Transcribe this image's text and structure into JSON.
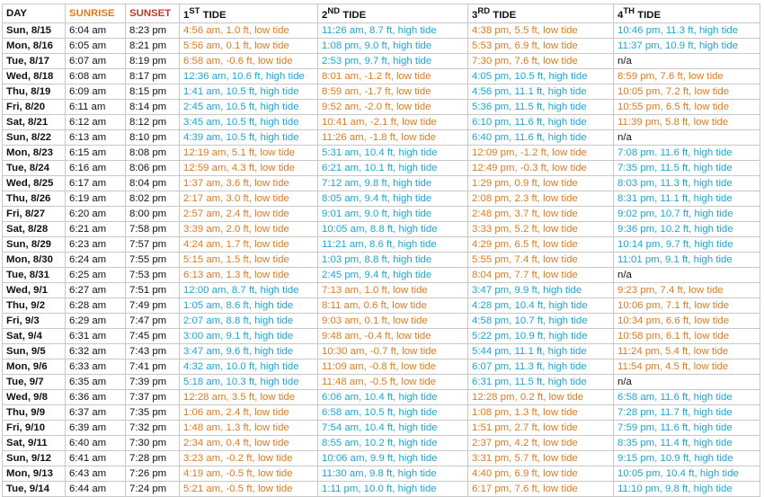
{
  "colors": {
    "low": "#e07b1f",
    "high": "#1ba7d6",
    "sunrise": "#e07b1f",
    "sunset": "#c0392b"
  },
  "headers": {
    "day": "DAY",
    "sunrise": "SUNRISE",
    "sunset": "SUNSET",
    "tide1": {
      "num": "1",
      "sup": "ST",
      "label": " TIDE"
    },
    "tide2": {
      "num": "2",
      "sup": "ND",
      "label": " TIDE"
    },
    "tide3": {
      "num": "3",
      "sup": "RD",
      "label": " TIDE"
    },
    "tide4": {
      "num": "4",
      "sup": "TH",
      "label": " TIDE"
    }
  },
  "rows": [
    {
      "day": "Sun, 8/15",
      "sunrise": "6:04 am",
      "sunset": "8:23 pm",
      "tides": [
        {
          "text": "4:56 am, 1.0 ft, low tide",
          "type": "low"
        },
        {
          "text": "11:26 am, 8.7 ft, high tide",
          "type": "high"
        },
        {
          "text": "4:38 pm, 5.5 ft, low tide",
          "type": "low"
        },
        {
          "text": "10:46 pm, 11.3 ft, high tide",
          "type": "high"
        }
      ]
    },
    {
      "day": "Mon, 8/16",
      "sunrise": "6:05 am",
      "sunset": "8:21 pm",
      "tides": [
        {
          "text": "5:56 am, 0.1 ft, low tide",
          "type": "low"
        },
        {
          "text": "1:08 pm, 9.0 ft, high tide",
          "type": "high"
        },
        {
          "text": "5:53 pm, 6.9 ft, low tide",
          "type": "low"
        },
        {
          "text": "11:37 pm, 10.9 ft, high tide",
          "type": "high"
        }
      ]
    },
    {
      "day": "Tue, 8/17",
      "sunrise": "6:07 am",
      "sunset": "8:19 pm",
      "tides": [
        {
          "text": "6:58 am, -0.6 ft, low tide",
          "type": "low"
        },
        {
          "text": "2:53 pm, 9.7 ft, high tide",
          "type": "high"
        },
        {
          "text": "7:30 pm, 7.6 ft, low tide",
          "type": "low"
        },
        {
          "text": "n/a",
          "type": "na"
        }
      ]
    },
    {
      "day": "Wed, 8/18",
      "sunrise": "6:08 am",
      "sunset": "8:17 pm",
      "tides": [
        {
          "text": "12:36 am, 10.6 ft, high tide",
          "type": "high"
        },
        {
          "text": "8:01 am, -1.2 ft, low tide",
          "type": "low"
        },
        {
          "text": "4:05 pm, 10.5 ft, high tide",
          "type": "high"
        },
        {
          "text": "8:59 pm, 7.6 ft, low tide",
          "type": "low"
        }
      ]
    },
    {
      "day": "Thu, 8/19",
      "sunrise": "6:09 am",
      "sunset": "8:15 pm",
      "tides": [
        {
          "text": "1:41 am, 10.5 ft, high tide",
          "type": "high"
        },
        {
          "text": "8:59 am, -1.7 ft, low tide",
          "type": "low"
        },
        {
          "text": "4:56 pm, 11.1 ft, high tide",
          "type": "high"
        },
        {
          "text": "10:05 pm, 7.2 ft, low tide",
          "type": "low"
        }
      ]
    },
    {
      "day": "Fri, 8/20",
      "sunrise": "6:11 am",
      "sunset": "8:14 pm",
      "tides": [
        {
          "text": "2:45 am, 10.5 ft, high tide",
          "type": "high"
        },
        {
          "text": "9:52 am, -2.0 ft, low tide",
          "type": "low"
        },
        {
          "text": "5:36 pm, 11.5 ft, high tide",
          "type": "high"
        },
        {
          "text": "10:55 pm, 6.5 ft, low tide",
          "type": "low"
        }
      ]
    },
    {
      "day": "Sat, 8/21",
      "sunrise": "6:12 am",
      "sunset": "8:12 pm",
      "tides": [
        {
          "text": "3:45 am, 10.5 ft, high tide",
          "type": "high"
        },
        {
          "text": "10:41 am, -2.1 ft, low tide",
          "type": "low"
        },
        {
          "text": "6:10 pm, 11.6 ft, high tide",
          "type": "high"
        },
        {
          "text": "11:39 pm, 5.8 ft, low tide",
          "type": "low"
        }
      ]
    },
    {
      "day": "Sun, 8/22",
      "sunrise": "6:13 am",
      "sunset": "8:10 pm",
      "tides": [
        {
          "text": "4:39 am, 10.5 ft, high tide",
          "type": "high"
        },
        {
          "text": "11:26 am, -1.8 ft, low tide",
          "type": "low"
        },
        {
          "text": "6:40 pm, 11.6 ft, high tide",
          "type": "high"
        },
        {
          "text": "n/a",
          "type": "na"
        }
      ]
    },
    {
      "day": "Mon, 8/23",
      "sunrise": "6:15 am",
      "sunset": "8:08 pm",
      "tides": [
        {
          "text": "12:19 am, 5.1 ft, low tide",
          "type": "low"
        },
        {
          "text": "5:31 am, 10.4 ft, high tide",
          "type": "high"
        },
        {
          "text": "12:09 pm, -1.2 ft, low tide",
          "type": "low"
        },
        {
          "text": "7:08 pm. 11.6 ft, high tide",
          "type": "high"
        }
      ]
    },
    {
      "day": "Tue, 8/24",
      "sunrise": "6:16 am",
      "sunset": "8:06 pm",
      "tides": [
        {
          "text": "12:59 am, 4.3 ft, low tide",
          "type": "low"
        },
        {
          "text": "6:21 am, 10.1 ft, high tide",
          "type": "high"
        },
        {
          "text": "12:49 pm, -0.3 ft, low tide",
          "type": "low"
        },
        {
          "text": "7:35 pm, 11.5 ft, high tide",
          "type": "high"
        }
      ]
    },
    {
      "day": "Wed, 8/25",
      "sunrise": "6:17 am",
      "sunset": "8:04 pm",
      "tides": [
        {
          "text": "1:37 am, 3.6 ft, low tide",
          "type": "low"
        },
        {
          "text": "7:12 am, 9.8 ft, high tide",
          "type": "high"
        },
        {
          "text": "1:29 pm, 0.9 ft, low tide",
          "type": "low"
        },
        {
          "text": "8:03 pm, 11.3 ft, high tide",
          "type": "high"
        }
      ]
    },
    {
      "day": "Thu, 8/26",
      "sunrise": "6:19 am",
      "sunset": "8:02 pm",
      "tides": [
        {
          "text": "2:17 am, 3.0 ft, low tide",
          "type": "low"
        },
        {
          "text": "8:05 am, 9.4 ft, high tide",
          "type": "high"
        },
        {
          "text": "2:08 pm, 2.3 ft, low tide",
          "type": "low"
        },
        {
          "text": "8:31 pm, 11.1 ft, high tide",
          "type": "high"
        }
      ]
    },
    {
      "day": "Fri, 8/27",
      "sunrise": "6:20 am",
      "sunset": "8:00 pm",
      "tides": [
        {
          "text": "2:57 am, 2.4 ft, low tide",
          "type": "low"
        },
        {
          "text": "9:01 am, 9.0 ft, high tide",
          "type": "high"
        },
        {
          "text": "2:48 pm, 3.7 ft, low tide",
          "type": "low"
        },
        {
          "text": "9:02 pm, 10.7 ft, high tide",
          "type": "high"
        }
      ]
    },
    {
      "day": "Sat, 8/28",
      "sunrise": "6:21 am",
      "sunset": "7:58 pm",
      "tides": [
        {
          "text": "3:39 am, 2.0 ft, low tide",
          "type": "low"
        },
        {
          "text": "10:05 am, 8.8 ft, high tide",
          "type": "high"
        },
        {
          "text": "3:33 pm, 5.2 ft, low tide",
          "type": "low"
        },
        {
          "text": "9:36 pm, 10.2 ft, high tide",
          "type": "high"
        }
      ]
    },
    {
      "day": "Sun, 8/29",
      "sunrise": "6:23 am",
      "sunset": "7:57 pm",
      "tides": [
        {
          "text": "4:24 am, 1.7 ft, low tide",
          "type": "low"
        },
        {
          "text": "11:21 am, 8.6 ft, high tide",
          "type": "high"
        },
        {
          "text": "4:29 pm, 6.5 ft, low tide",
          "type": "low"
        },
        {
          "text": "10:14 pm, 9.7 ft, high tide",
          "type": "high"
        }
      ]
    },
    {
      "day": "Mon, 8/30",
      "sunrise": "6:24 am",
      "sunset": "7:55 pm",
      "tides": [
        {
          "text": "5:15 am, 1.5 ft, low tide",
          "type": "low"
        },
        {
          "text": "1:03 pm, 8.8 ft, high tide",
          "type": "high"
        },
        {
          "text": "5:55 pm, 7.4 ft, low tide",
          "type": "low"
        },
        {
          "text": "11:01 pm, 9.1 ft, high tide",
          "type": "high"
        }
      ]
    },
    {
      "day": "Tue, 8/31",
      "sunrise": "6:25 am",
      "sunset": "7:53 pm",
      "tides": [
        {
          "text": "6:13 am, 1.3 ft, low tide",
          "type": "low"
        },
        {
          "text": "2:45 pm, 9.4 ft, high tide",
          "type": "high"
        },
        {
          "text": "8:04 pm, 7.7 ft, low tide",
          "type": "low"
        },
        {
          "text": "n/a",
          "type": "na"
        }
      ]
    },
    {
      "day": "Wed, 9/1",
      "sunrise": "6:27 am",
      "sunset": "7:51 pm",
      "tides": [
        {
          "text": "12:00 am, 8.7 ft, high tide",
          "type": "high"
        },
        {
          "text": "7:13 am, 1.0 ft, low tide",
          "type": "low"
        },
        {
          "text": "3:47 pm, 9.9 ft, high tide",
          "type": "high"
        },
        {
          "text": "9:23 pm, 7.4 ft, low tide",
          "type": "low"
        }
      ]
    },
    {
      "day": "Thu, 9/2",
      "sunrise": "6:28 am",
      "sunset": "7:49 pm",
      "tides": [
        {
          "text": "1:05 am, 8.6 ft, high tide",
          "type": "high"
        },
        {
          "text": "8:11 am, 0.6 ft, low tide",
          "type": "low"
        },
        {
          "text": "4:28 pm, 10.4 ft, high tide",
          "type": "high"
        },
        {
          "text": "10:06 pm, 7.1 ft, low tide",
          "type": "low"
        }
      ]
    },
    {
      "day": "Fri, 9/3",
      "sunrise": "6:29 am",
      "sunset": "7:47 pm",
      "tides": [
        {
          "text": "2:07 am, 8.8 ft, high tide",
          "type": "high"
        },
        {
          "text": "9:03 am, 0.1 ft, low tide",
          "type": "low"
        },
        {
          "text": "4:58 pm, 10.7 ft, high tide",
          "type": "high"
        },
        {
          "text": "10:34 pm, 6.6 ft, low tide",
          "type": "low"
        }
      ]
    },
    {
      "day": "Sat, 9/4",
      "sunrise": "6:31 am",
      "sunset": "7:45 pm",
      "tides": [
        {
          "text": "3:00 am, 9.1 ft, high tide",
          "type": "high"
        },
        {
          "text": "9:48 am, -0.4 ft, low tide",
          "type": "low"
        },
        {
          "text": "5:22 pm, 10.9 ft, high tide",
          "type": "high"
        },
        {
          "text": "10:58 pm, 6.1 ft, low tide",
          "type": "low"
        }
      ]
    },
    {
      "day": "Sun, 9/5",
      "sunrise": "6:32 am",
      "sunset": "7:43 pm",
      "tides": [
        {
          "text": "3:47 am, 9.6 ft, high tide",
          "type": "high"
        },
        {
          "text": "10:30 am, -0.7 ft, low tide",
          "type": "low"
        },
        {
          "text": "5:44 pm, 11.1 ft, high tide",
          "type": "high"
        },
        {
          "text": "11:24 pm, 5.4 ft, low tide",
          "type": "low"
        }
      ]
    },
    {
      "day": "Mon, 9/6",
      "sunrise": "6:33 am",
      "sunset": "7:41 pm",
      "tides": [
        {
          "text": "4:32 am, 10.0 ft, high tide",
          "type": "high"
        },
        {
          "text": "11:09 am, -0.8 ft, low tide",
          "type": "low"
        },
        {
          "text": "6:07 pm, 11.3 ft, high tide",
          "type": "high"
        },
        {
          "text": "11:54 pm, 4.5 ft, low tide",
          "type": "low"
        }
      ]
    },
    {
      "day": "Tue, 9/7",
      "sunrise": "6:35 am",
      "sunset": "7:39 pm",
      "tides": [
        {
          "text": "5:18 am, 10.3 ft, high tide",
          "type": "high"
        },
        {
          "text": "11:48 am, -0.5 ft, low tide",
          "type": "low"
        },
        {
          "text": "6:31 pm, 11.5 ft, high tide",
          "type": "high"
        },
        {
          "text": "n/a",
          "type": "na"
        }
      ]
    },
    {
      "day": "Wed, 9/8",
      "sunrise": "6:36 am",
      "sunset": "7:37 pm",
      "tides": [
        {
          "text": "12:28 am, 3.5 ft, low tide",
          "type": "low"
        },
        {
          "text": "6:06 am, 10.4 ft, high tide",
          "type": "high"
        },
        {
          "text": "12:28 pm, 0.2 ft, low tide",
          "type": "low"
        },
        {
          "text": "6:58 am, 11.6 ft, high tide",
          "type": "high"
        }
      ]
    },
    {
      "day": "Thu, 9/9",
      "sunrise": "6:37 am",
      "sunset": "7:35 pm",
      "tides": [
        {
          "text": "1:06 am, 2.4 ft, low tide",
          "type": "low"
        },
        {
          "text": "6:58 am, 10.5 ft, high tide",
          "type": "high"
        },
        {
          "text": "1:08 pm, 1.3 ft, low tide",
          "type": "low"
        },
        {
          "text": "7:28 pm, 11.7 ft, high tide",
          "type": "high"
        }
      ]
    },
    {
      "day": "Fri, 9/10",
      "sunrise": "6:39 am",
      "sunset": "7:32 pm",
      "tides": [
        {
          "text": "1:48 am, 1.3 ft, low tide",
          "type": "low"
        },
        {
          "text": "7:54 am, 10.4 ft, high tide",
          "type": "high"
        },
        {
          "text": "1:51 pm, 2.7 ft, low tide",
          "type": "low"
        },
        {
          "text": "7:59 pm, 11.6 ft, high tide",
          "type": "high"
        }
      ]
    },
    {
      "day": "Sat, 9/11",
      "sunrise": "6:40 am",
      "sunset": "7:30 pm",
      "tides": [
        {
          "text": "2:34 am, 0.4 ft, low tide",
          "type": "low"
        },
        {
          "text": "8:55 am, 10.2 ft, high tide",
          "type": "high"
        },
        {
          "text": "2:37 pm, 4.2 ft, low tide",
          "type": "low"
        },
        {
          "text": "8:35 pm, 11.4 ft, high tide",
          "type": "high"
        }
      ]
    },
    {
      "day": "Sun, 9/12",
      "sunrise": "6:41 am",
      "sunset": "7:28 pm",
      "tides": [
        {
          "text": "3:23 am, -0.2 ft, low tide",
          "type": "low"
        },
        {
          "text": "10:06 am, 9.9 ft, high tide",
          "type": "high"
        },
        {
          "text": "3:31 pm, 5.7 ft, low tide",
          "type": "low"
        },
        {
          "text": "9:15 pm, 10.9 ft, high tide",
          "type": "high"
        }
      ]
    },
    {
      "day": "Mon, 9/13",
      "sunrise": "6:43 am",
      "sunset": "7:26 pm",
      "tides": [
        {
          "text": "4:19 am, -0.5 ft, low tide",
          "type": "low"
        },
        {
          "text": "11:30 am, 9.8 ft, high tide",
          "type": "high"
        },
        {
          "text": "4:40 pm, 6.9 ft, low tide",
          "type": "low"
        },
        {
          "text": "10:05 pm, 10.4 ft, high tide",
          "type": "high"
        }
      ]
    },
    {
      "day": "Tue, 9/14",
      "sunrise": "6:44 am",
      "sunset": "7:24 pm",
      "tides": [
        {
          "text": "5:21 am, -0.5 ft, low tide",
          "type": "low"
        },
        {
          "text": "1:11 pm, 10.0 ft, high tide",
          "type": "high"
        },
        {
          "text": "6:17 pm, 7.6 ft, low tide",
          "type": "low"
        },
        {
          "text": "11:10 pm, 9.8 ft, high tide",
          "type": "high"
        }
      ]
    }
  ]
}
